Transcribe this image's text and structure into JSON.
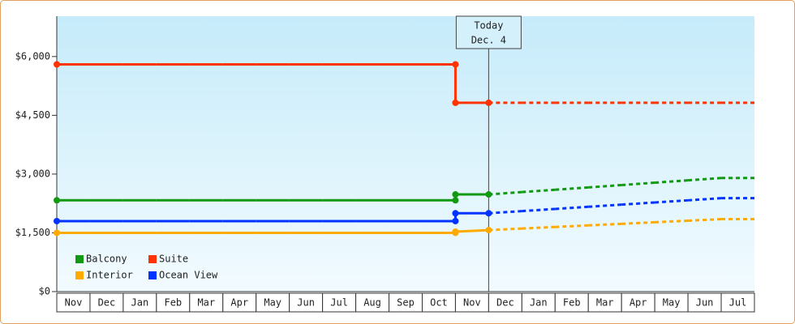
{
  "chart_data": {
    "type": "line",
    "categories": [
      "Nov",
      "Dec",
      "Jan",
      "Feb",
      "Mar",
      "Apr",
      "May",
      "Jun",
      "Jul",
      "Aug",
      "Sep",
      "Oct",
      "Nov",
      "Dec",
      "Jan",
      "Feb",
      "Mar",
      "Apr",
      "May",
      "Jun",
      "Jul"
    ],
    "series": [
      {
        "name": "Balcony",
        "color": "#119911",
        "values": [
          2330,
          2330,
          2330,
          2330,
          2330,
          2330,
          2330,
          2330,
          2330,
          2330,
          2330,
          2330,
          2480,
          2480,
          2540,
          2600,
          2660,
          2720,
          2780,
          2840,
          2900
        ]
      },
      {
        "name": "Suite",
        "color": "#ff3300",
        "values": [
          5800,
          5800,
          5800,
          5800,
          5800,
          5800,
          5800,
          5800,
          5800,
          5800,
          5800,
          5800,
          4820,
          4820,
          4820,
          4820,
          4820,
          4820,
          4820,
          4820,
          4820
        ]
      },
      {
        "name": "Interior",
        "color": "#ffaa00",
        "values": [
          1500,
          1500,
          1500,
          1500,
          1500,
          1500,
          1500,
          1500,
          1500,
          1500,
          1500,
          1500,
          1530,
          1570,
          1610,
          1650,
          1690,
          1730,
          1770,
          1810,
          1850
        ]
      },
      {
        "name": "Ocean View",
        "color": "#0033ff",
        "values": [
          1800,
          1800,
          1800,
          1800,
          1800,
          1800,
          1800,
          1800,
          1800,
          1800,
          1800,
          1800,
          2000,
          2000,
          2055,
          2110,
          2165,
          2220,
          2275,
          2330,
          2385
        ]
      }
    ],
    "annotation": [
      "Today",
      "Dec. 4"
    ],
    "ylim": [
      0,
      7030
    ],
    "yticks": [
      {
        "value": 0,
        "label": "$0"
      },
      {
        "value": 1500,
        "label": "$1,500"
      },
      {
        "value": 3000,
        "label": "$3,000"
      },
      {
        "value": 4500,
        "label": "$4,500"
      },
      {
        "value": 6000,
        "label": "$6,000"
      }
    ]
  }
}
